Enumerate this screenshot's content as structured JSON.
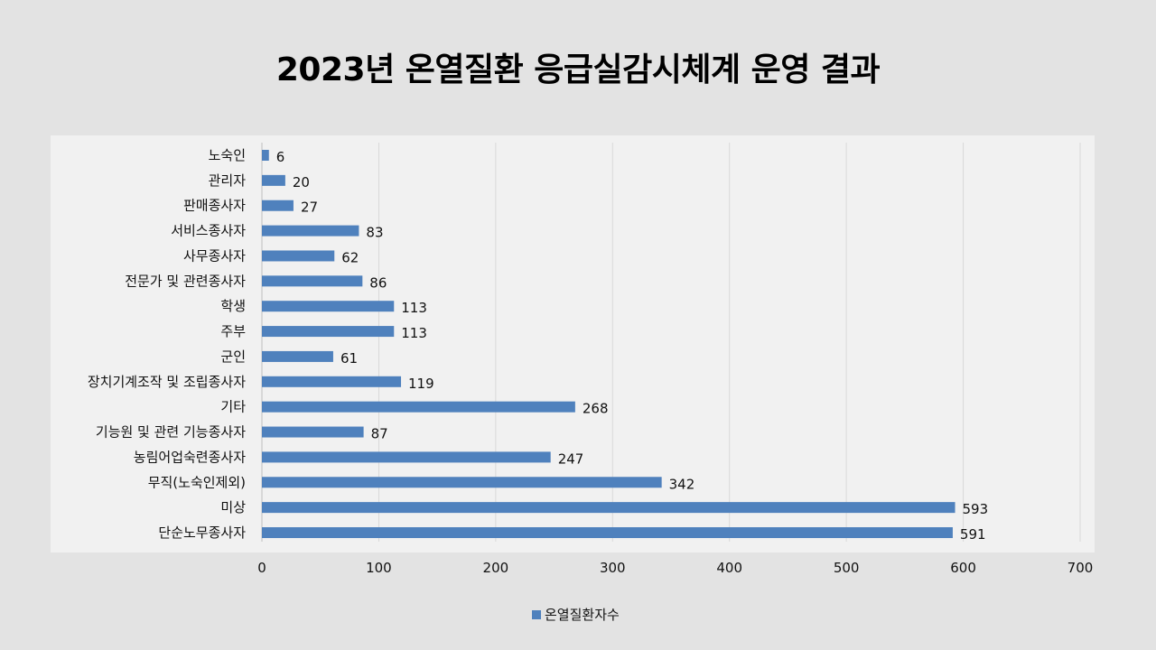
{
  "chart_data": {
    "type": "bar",
    "orientation": "horizontal",
    "title": "2023년 온열질환 응급실감시체계 운영 결과",
    "categories": [
      "노숙인",
      "관리자",
      "판매종사자",
      "서비스종사자",
      "사무종사자",
      "전문가 및 관련종사자",
      "학생",
      "주부",
      "군인",
      "장치기계조작 및 조립종사자",
      "기타",
      "기능원 및 관련 기능종사자",
      "농림어업숙련종사자",
      "무직(노숙인제외)",
      "미상",
      "단순노무종사자"
    ],
    "series": [
      {
        "name": "온열질환자수",
        "values": [
          6,
          20,
          27,
          83,
          62,
          86,
          113,
          113,
          61,
          119,
          268,
          87,
          247,
          342,
          593,
          591
        ],
        "color": "#4f81bd"
      }
    ],
    "xlim": [
      0,
      700
    ],
    "xticks": [
      0,
      100,
      200,
      300,
      400,
      500,
      600,
      700
    ],
    "grid": "vertical",
    "legend": "bottom",
    "data_labels": true
  }
}
